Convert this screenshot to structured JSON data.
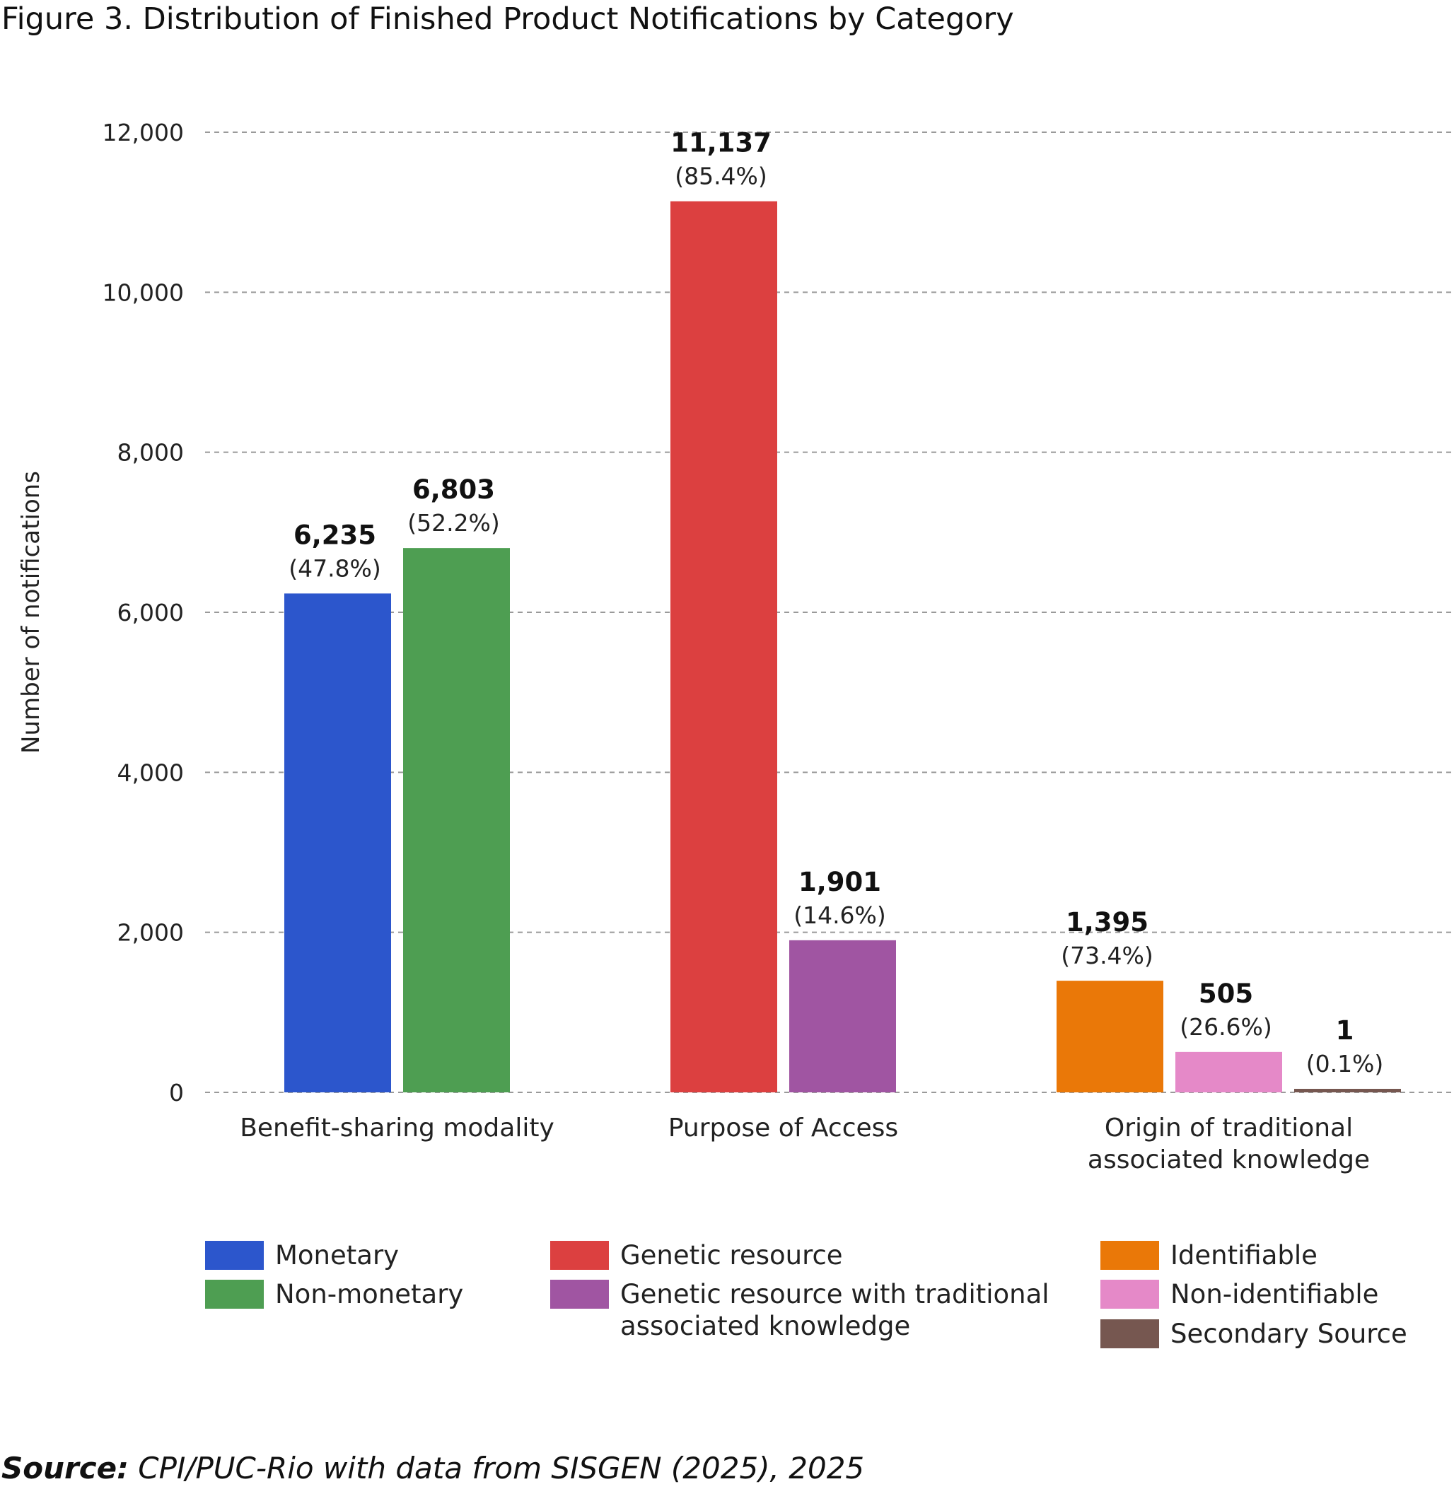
{
  "title": "Figure 3. Distribution of Finished Product Notifications by Category",
  "source": {
    "label": "Source:",
    "text": "CPI/PUC-Rio with data from SISGEN (2025), 2025"
  },
  "colors": {
    "monetary": "#2c56cc",
    "non_monetary": "#4e9e52",
    "genetic_resource": "#dc4040",
    "genetic_resource_tak": "#a055a2",
    "identifiable": "#ea7808",
    "non_identifiable": "#e589c8",
    "secondary_source": "#765750",
    "grid": "#9a9a9a"
  },
  "chart_data": {
    "type": "bar",
    "ylabel": "Number of notifications",
    "xlabel": "",
    "ylim": [
      0,
      12000
    ],
    "yticks": [
      {
        "value": 0,
        "label": "0"
      },
      {
        "value": 2000,
        "label": "2,000"
      },
      {
        "value": 4000,
        "label": "4,000"
      },
      {
        "value": 6000,
        "label": "6,000"
      },
      {
        "value": 8000,
        "label": "8,000"
      },
      {
        "value": 10000,
        "label": "10,000"
      },
      {
        "value": 12000,
        "label": "12,000"
      }
    ],
    "grid": true,
    "legend_position": "bottom",
    "groups": [
      {
        "category": [
          "Benefit-sharing modality"
        ],
        "bars": [
          {
            "name": "Monetary",
            "value": 6235,
            "value_label": "6,235",
            "pct_label": "(47.8%)",
            "color_key": "monetary"
          },
          {
            "name": "Non-monetary",
            "value": 6803,
            "value_label": "6,803",
            "pct_label": "(52.2%)",
            "color_key": "non_monetary"
          }
        ]
      },
      {
        "category": [
          "Purpose of Access"
        ],
        "bars": [
          {
            "name": "Genetic resource",
            "value": 11137,
            "value_label": "11,137",
            "pct_label": "(85.4%)",
            "color_key": "genetic_resource"
          },
          {
            "name": "Genetic resource with traditional associated knowledge",
            "value": 1901,
            "value_label": "1,901",
            "pct_label": "(14.6%)",
            "color_key": "genetic_resource_tak"
          }
        ]
      },
      {
        "category": [
          "Origin of traditional",
          "associated knowledge"
        ],
        "bars": [
          {
            "name": "Identifiable",
            "value": 1395,
            "value_label": "1,395",
            "pct_label": "(73.4%)",
            "color_key": "identifiable"
          },
          {
            "name": "Non-identifiable",
            "value": 505,
            "value_label": "505",
            "pct_label": "(26.6%)",
            "color_key": "non_identifiable"
          },
          {
            "name": "Secondary Source",
            "value": 1,
            "value_label": "1",
            "pct_label": "(0.1%)",
            "color_key": "secondary_source"
          }
        ]
      }
    ]
  },
  "legend": [
    {
      "lines": [
        "Monetary"
      ],
      "color_key": "monetary"
    },
    {
      "lines": [
        "Non-monetary"
      ],
      "color_key": "non_monetary"
    },
    {
      "lines": [
        "Genetic resource"
      ],
      "color_key": "genetic_resource"
    },
    {
      "lines": [
        "Genetic resource with traditional",
        "associated knowledge"
      ],
      "color_key": "genetic_resource_tak"
    },
    {
      "lines": [
        "Identifiable"
      ],
      "color_key": "identifiable"
    },
    {
      "lines": [
        "Non-identifiable"
      ],
      "color_key": "non_identifiable"
    },
    {
      "lines": [
        "Secondary Source"
      ],
      "color_key": "secondary_source"
    }
  ]
}
